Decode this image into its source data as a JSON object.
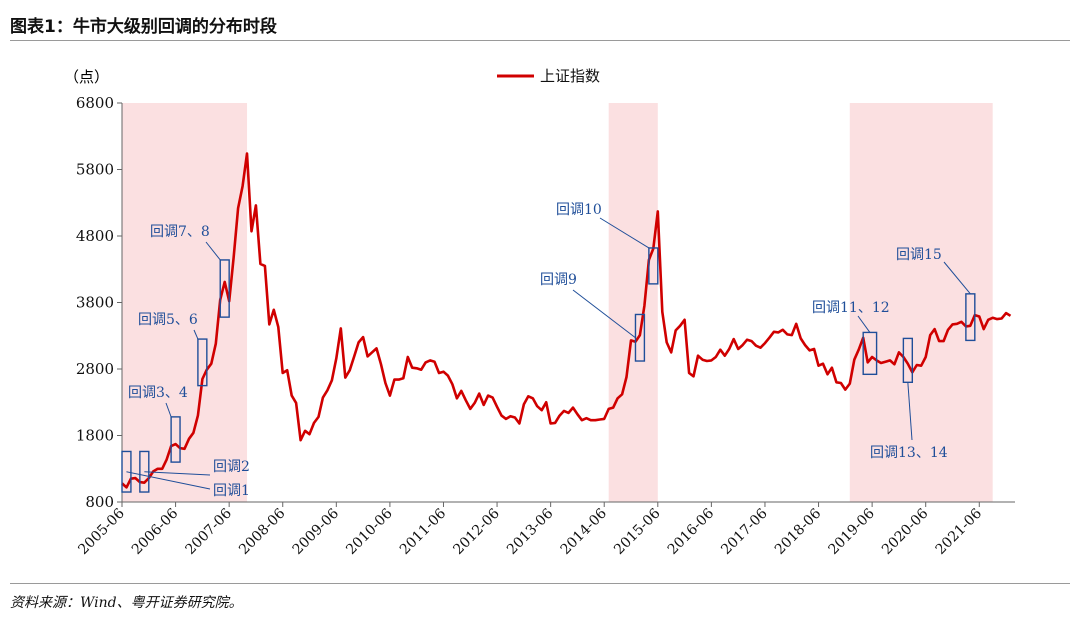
{
  "figure": {
    "title": "图表1：牛市大级别回调的分布时段",
    "source": "资料来源：Wind、粤开证券研究院。"
  },
  "chart_data": {
    "type": "line",
    "unit_label": "（点）",
    "series": [
      {
        "name": "上证指数",
        "color": "#d00000",
        "points": [
          [
            "2005-06",
            1080
          ],
          [
            "2005-07",
            1020
          ],
          [
            "2005-08",
            1150
          ],
          [
            "2005-09",
            1160
          ],
          [
            "2005-10",
            1100
          ],
          [
            "2005-11",
            1090
          ],
          [
            "2005-12",
            1160
          ],
          [
            "2006-01",
            1260
          ],
          [
            "2006-02",
            1300
          ],
          [
            "2006-03",
            1300
          ],
          [
            "2006-04",
            1440
          ],
          [
            "2006-05",
            1640
          ],
          [
            "2006-06",
            1670
          ],
          [
            "2006-07",
            1610
          ],
          [
            "2006-08",
            1600
          ],
          [
            "2006-09",
            1750
          ],
          [
            "2006-10",
            1840
          ],
          [
            "2006-11",
            2100
          ],
          [
            "2006-12",
            2650
          ],
          [
            "2007-01",
            2790
          ],
          [
            "2007-02",
            2880
          ],
          [
            "2007-03",
            3180
          ],
          [
            "2007-04",
            3840
          ],
          [
            "2007-05",
            4110
          ],
          [
            "2007-06",
            3820
          ],
          [
            "2007-07",
            4470
          ],
          [
            "2007-08",
            5220
          ],
          [
            "2007-09",
            5550
          ],
          [
            "2007-10",
            6040
          ],
          [
            "2007-11",
            4870
          ],
          [
            "2007-12",
            5260
          ],
          [
            "2008-01",
            4380
          ],
          [
            "2008-02",
            4350
          ],
          [
            "2008-03",
            3470
          ],
          [
            "2008-04",
            3690
          ],
          [
            "2008-05",
            3430
          ],
          [
            "2008-06",
            2740
          ],
          [
            "2008-07",
            2780
          ],
          [
            "2008-08",
            2400
          ],
          [
            "2008-09",
            2290
          ],
          [
            "2008-10",
            1730
          ],
          [
            "2008-11",
            1870
          ],
          [
            "2008-12",
            1820
          ],
          [
            "2009-01",
            1990
          ],
          [
            "2009-02",
            2080
          ],
          [
            "2009-03",
            2370
          ],
          [
            "2009-04",
            2480
          ],
          [
            "2009-05",
            2630
          ],
          [
            "2009-06",
            2960
          ],
          [
            "2009-07",
            3410
          ],
          [
            "2009-08",
            2670
          ],
          [
            "2009-09",
            2780
          ],
          [
            "2009-10",
            2990
          ],
          [
            "2009-11",
            3200
          ],
          [
            "2009-12",
            3280
          ],
          [
            "2010-01",
            2990
          ],
          [
            "2010-02",
            3050
          ],
          [
            "2010-03",
            3110
          ],
          [
            "2010-04",
            2870
          ],
          [
            "2010-05",
            2590
          ],
          [
            "2010-06",
            2400
          ],
          [
            "2010-07",
            2640
          ],
          [
            "2010-08",
            2640
          ],
          [
            "2010-09",
            2660
          ],
          [
            "2010-10",
            2980
          ],
          [
            "2010-11",
            2820
          ],
          [
            "2010-12",
            2810
          ],
          [
            "2011-01",
            2790
          ],
          [
            "2011-02",
            2900
          ],
          [
            "2011-03",
            2930
          ],
          [
            "2011-04",
            2910
          ],
          [
            "2011-05",
            2740
          ],
          [
            "2011-06",
            2760
          ],
          [
            "2011-07",
            2700
          ],
          [
            "2011-08",
            2570
          ],
          [
            "2011-09",
            2360
          ],
          [
            "2011-10",
            2470
          ],
          [
            "2011-11",
            2330
          ],
          [
            "2011-12",
            2200
          ],
          [
            "2012-01",
            2290
          ],
          [
            "2012-02",
            2430
          ],
          [
            "2012-03",
            2260
          ],
          [
            "2012-04",
            2400
          ],
          [
            "2012-05",
            2370
          ],
          [
            "2012-06",
            2230
          ],
          [
            "2012-07",
            2100
          ],
          [
            "2012-08",
            2050
          ],
          [
            "2012-09",
            2090
          ],
          [
            "2012-10",
            2070
          ],
          [
            "2012-11",
            1980
          ],
          [
            "2012-12",
            2270
          ],
          [
            "2013-01",
            2390
          ],
          [
            "2013-02",
            2360
          ],
          [
            "2013-03",
            2240
          ],
          [
            "2013-04",
            2180
          ],
          [
            "2013-05",
            2300
          ],
          [
            "2013-06",
            1980
          ],
          [
            "2013-07",
            1990
          ],
          [
            "2013-08",
            2100
          ],
          [
            "2013-09",
            2170
          ],
          [
            "2013-10",
            2140
          ],
          [
            "2013-11",
            2220
          ],
          [
            "2013-12",
            2120
          ],
          [
            "2014-01",
            2030
          ],
          [
            "2014-02",
            2060
          ],
          [
            "2014-03",
            2030
          ],
          [
            "2014-04",
            2030
          ],
          [
            "2014-05",
            2040
          ],
          [
            "2014-06",
            2050
          ],
          [
            "2014-07",
            2200
          ],
          [
            "2014-08",
            2220
          ],
          [
            "2014-09",
            2360
          ],
          [
            "2014-10",
            2420
          ],
          [
            "2014-11",
            2680
          ],
          [
            "2014-12",
            3230
          ],
          [
            "2015-01",
            3210
          ],
          [
            "2015-02",
            3310
          ],
          [
            "2015-03",
            3750
          ],
          [
            "2015-04",
            4440
          ],
          [
            "2015-05",
            4610
          ],
          [
            "2015-06",
            5170
          ],
          [
            "2015-07",
            3660
          ],
          [
            "2015-08",
            3200
          ],
          [
            "2015-09",
            3050
          ],
          [
            "2015-10",
            3380
          ],
          [
            "2015-11",
            3450
          ],
          [
            "2015-12",
            3540
          ],
          [
            "2016-01",
            2740
          ],
          [
            "2016-02",
            2690
          ],
          [
            "2016-03",
            3000
          ],
          [
            "2016-04",
            2940
          ],
          [
            "2016-05",
            2920
          ],
          [
            "2016-06",
            2930
          ],
          [
            "2016-07",
            2980
          ],
          [
            "2016-08",
            3090
          ],
          [
            "2016-09",
            3000
          ],
          [
            "2016-10",
            3100
          ],
          [
            "2016-11",
            3250
          ],
          [
            "2016-12",
            3100
          ],
          [
            "2017-01",
            3160
          ],
          [
            "2017-02",
            3240
          ],
          [
            "2017-03",
            3220
          ],
          [
            "2017-04",
            3150
          ],
          [
            "2017-05",
            3120
          ],
          [
            "2017-06",
            3190
          ],
          [
            "2017-07",
            3270
          ],
          [
            "2017-08",
            3360
          ],
          [
            "2017-09",
            3350
          ],
          [
            "2017-10",
            3390
          ],
          [
            "2017-11",
            3320
          ],
          [
            "2017-12",
            3310
          ],
          [
            "2018-01",
            3480
          ],
          [
            "2018-02",
            3260
          ],
          [
            "2018-03",
            3160
          ],
          [
            "2018-04",
            3080
          ],
          [
            "2018-05",
            3100
          ],
          [
            "2018-06",
            2850
          ],
          [
            "2018-07",
            2880
          ],
          [
            "2018-08",
            2720
          ],
          [
            "2018-09",
            2820
          ],
          [
            "2018-10",
            2600
          ],
          [
            "2018-11",
            2590
          ],
          [
            "2018-12",
            2490
          ],
          [
            "2019-01",
            2580
          ],
          [
            "2019-02",
            2940
          ],
          [
            "2019-03",
            3090
          ],
          [
            "2019-04",
            3270
          ],
          [
            "2019-05",
            2900
          ],
          [
            "2019-06",
            2980
          ],
          [
            "2019-07",
            2930
          ],
          [
            "2019-08",
            2890
          ],
          [
            "2019-09",
            2910
          ],
          [
            "2019-10",
            2930
          ],
          [
            "2019-11",
            2870
          ],
          [
            "2019-12",
            3050
          ],
          [
            "2020-01",
            2980
          ],
          [
            "2020-02",
            2880
          ],
          [
            "2020-03",
            2750
          ],
          [
            "2020-04",
            2860
          ],
          [
            "2020-05",
            2850
          ],
          [
            "2020-06",
            2980
          ],
          [
            "2020-07",
            3310
          ],
          [
            "2020-08",
            3400
          ],
          [
            "2020-09",
            3220
          ],
          [
            "2020-10",
            3220
          ],
          [
            "2020-11",
            3390
          ],
          [
            "2020-12",
            3470
          ],
          [
            "2021-01",
            3480
          ],
          [
            "2021-02",
            3510
          ],
          [
            "2021-03",
            3440
          ],
          [
            "2021-04",
            3450
          ],
          [
            "2021-05",
            3610
          ],
          [
            "2021-06",
            3590
          ],
          [
            "2021-07",
            3400
          ],
          [
            "2021-08",
            3540
          ],
          [
            "2021-09",
            3570
          ],
          [
            "2021-10",
            3550
          ],
          [
            "2021-11",
            3560
          ],
          [
            "2021-12",
            3640
          ],
          [
            "2022-01",
            3600
          ]
        ]
      }
    ],
    "y_ticks": [
      800,
      1800,
      2800,
      3800,
      4800,
      5800,
      6800
    ],
    "ylim": [
      800,
      6800
    ],
    "x_tick_labels": [
      "2005-06",
      "2006-06",
      "2007-06",
      "2008-06",
      "2009-06",
      "2010-06",
      "2011-06",
      "2012-06",
      "2013-06",
      "2014-06",
      "2015-06",
      "2016-06",
      "2017-06",
      "2018-06",
      "2019-06",
      "2020-06",
      "2021-06"
    ],
    "xlim": [
      "2005-06",
      "2022-02"
    ],
    "legend_position": "top-center",
    "bull_market_shading": {
      "color": "#fbe0e1",
      "periods": [
        [
          "2005-06",
          "2007-10"
        ],
        [
          "2014-07",
          "2015-06"
        ],
        [
          "2019-01",
          "2021-09"
        ]
      ]
    },
    "annotations": [
      {
        "label": "回调1",
        "box": {
          "t0": "2005-06",
          "t1": "2005-08",
          "y0": 950,
          "y1": 1560
        }
      },
      {
        "label": "回调2",
        "box": {
          "t0": "2005-10",
          "t1": "2005-12",
          "y0": 950,
          "y1": 1560
        }
      },
      {
        "label": "回调3、4",
        "box": {
          "t0": "2006-05",
          "t1": "2006-07",
          "y0": 1400,
          "y1": 2080
        }
      },
      {
        "label": "回调5、6",
        "box": {
          "t0": "2006-11",
          "t1": "2007-01",
          "y0": 2550,
          "y1": 3250
        }
      },
      {
        "label": "回调7、8",
        "box": {
          "t0": "2007-04",
          "t1": "2007-06",
          "y0": 3580,
          "y1": 4440
        }
      },
      {
        "label": "回调9",
        "box": {
          "t0": "2015-01",
          "t1": "2015-03",
          "y0": 2920,
          "y1": 3620
        }
      },
      {
        "label": "回调10",
        "box": {
          "t0": "2015-04",
          "t1": "2015-06",
          "y0": 4080,
          "y1": 4620
        }
      },
      {
        "label": "回调11、12",
        "box": {
          "t0": "2019-04",
          "t1": "2019-07",
          "y0": 2720,
          "y1": 3350
        }
      },
      {
        "label": "回调13、14",
        "box": {
          "t0": "2020-01",
          "t1": "2020-03",
          "y0": 2600,
          "y1": 3260
        }
      },
      {
        "label": "回调15",
        "box": {
          "t0": "2021-03",
          "t1": "2021-05",
          "y0": 3230,
          "y1": 3930
        }
      }
    ]
  }
}
